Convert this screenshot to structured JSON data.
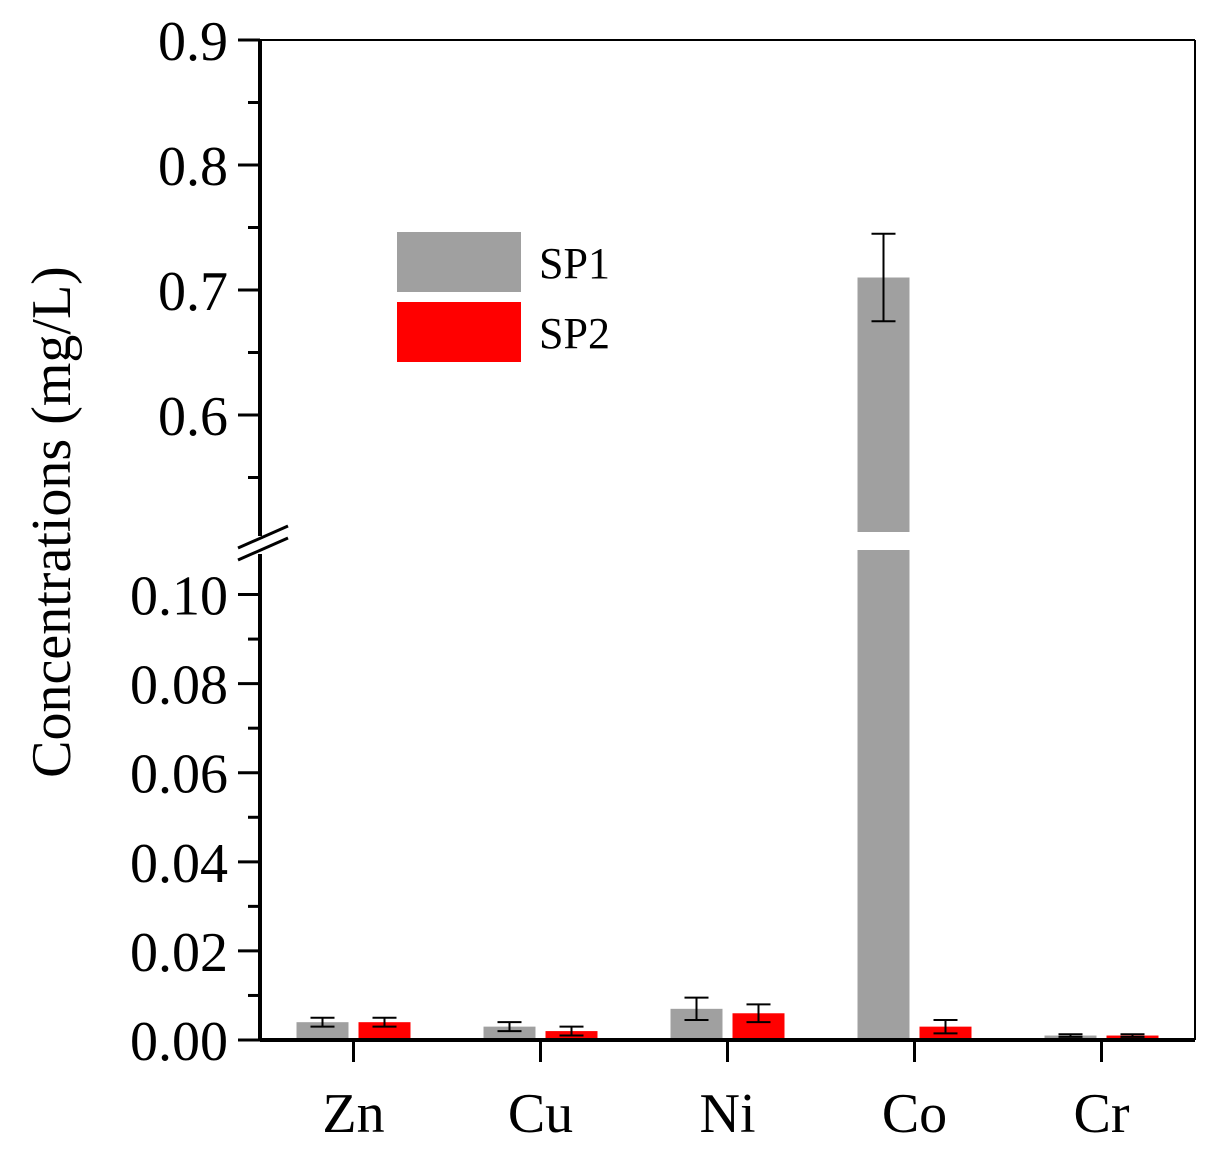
{
  "chart_data": {
    "type": "bar",
    "title": "",
    "xlabel": "",
    "ylabel": "Concentrations (mg/L)",
    "categories": [
      "Zn",
      "Cu",
      "Ni",
      "Co",
      "Cr"
    ],
    "series": [
      {
        "name": "SP1",
        "color": "#a0a0a0",
        "values": [
          0.004,
          0.003,
          0.007,
          0.71,
          0.001
        ],
        "errors": [
          0.001,
          0.001,
          0.0025,
          0.035,
          0.0003
        ]
      },
      {
        "name": "SP2",
        "color": "#ff0000",
        "values": [
          0.004,
          0.002,
          0.006,
          0.003,
          0.001
        ],
        "errors": [
          0.001,
          0.001,
          0.002,
          0.0015,
          0.0003
        ]
      }
    ],
    "y_axis_broken": true,
    "lower_segment": {
      "ylim": [
        0,
        0.11
      ],
      "ticks": [
        "0.00",
        "0.02",
        "0.04",
        "0.06",
        "0.08",
        "0.10"
      ]
    },
    "upper_segment": {
      "ylim": [
        0.5,
        0.9
      ],
      "ticks": [
        "0.6",
        "0.7",
        "0.8",
        "0.9"
      ]
    },
    "legend_position": "upper-left",
    "grid": false
  }
}
